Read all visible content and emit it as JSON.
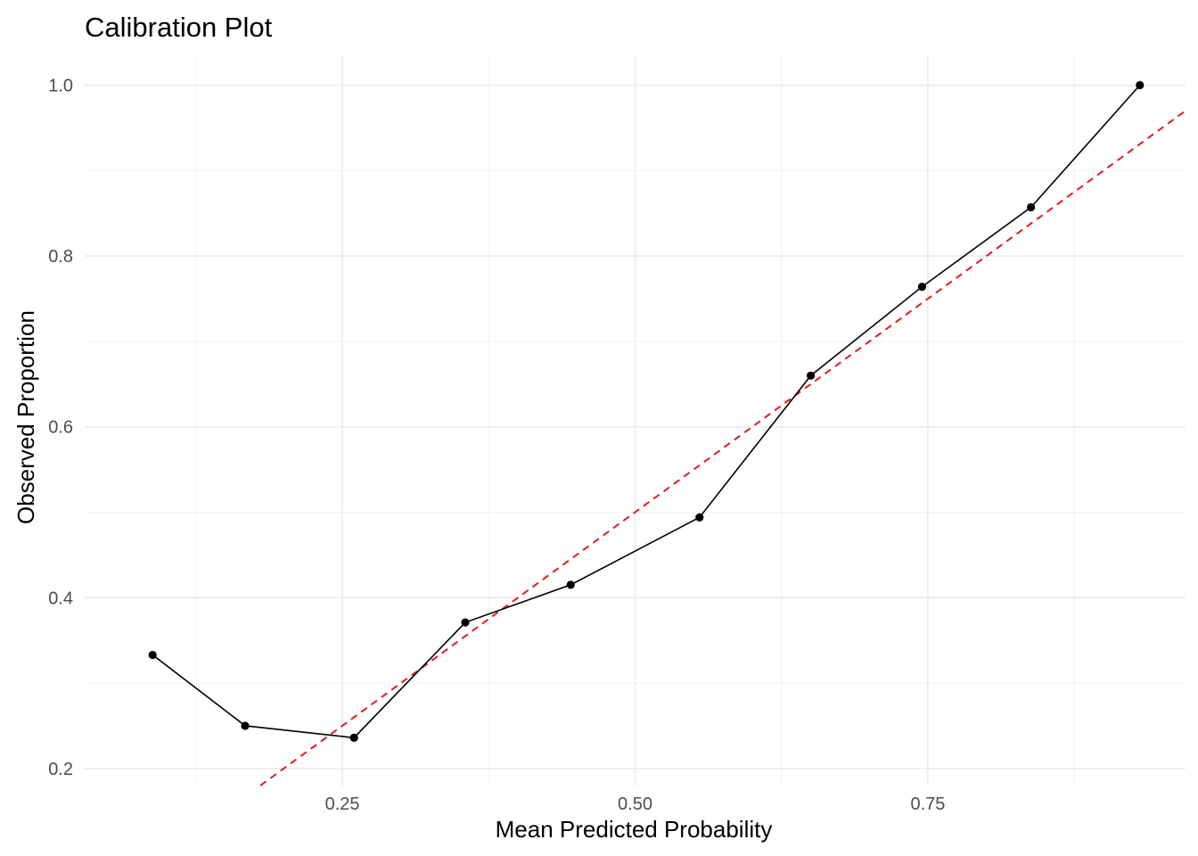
{
  "chart_data": {
    "type": "line",
    "title": "Calibration Plot",
    "xlabel": "Mean Predicted Probability",
    "ylabel": "Observed Proportion",
    "xlim": [
      0.03,
      0.97
    ],
    "ylim": [
      0.18,
      1.035
    ],
    "x_major_ticks": [
      0.25,
      0.5,
      0.75
    ],
    "x_tick_labels": [
      "0.25",
      "0.50",
      "0.75"
    ],
    "x_minor_ticks": [
      0.125,
      0.375,
      0.625,
      0.875
    ],
    "y_major_ticks": [
      0.2,
      0.4,
      0.6,
      0.8,
      1.0
    ],
    "y_tick_labels": [
      "0.2",
      "0.4",
      "0.6",
      "0.8",
      "1.0"
    ],
    "y_minor_ticks": [
      0.3,
      0.5,
      0.7,
      0.9
    ],
    "grid": true,
    "series": [
      {
        "type": "line+points",
        "color": "#000000",
        "x": [
          0.088,
          0.167,
          0.26,
          0.355,
          0.445,
          0.555,
          0.65,
          0.745,
          0.838,
          0.931
        ],
        "y": [
          0.333,
          0.25,
          0.236,
          0.371,
          0.415,
          0.494,
          0.66,
          0.764,
          0.857,
          1.0
        ]
      },
      {
        "type": "reference-line",
        "color": "#e41a1c",
        "style": "dashed",
        "intercept": 0,
        "slope": 1
      }
    ]
  }
}
